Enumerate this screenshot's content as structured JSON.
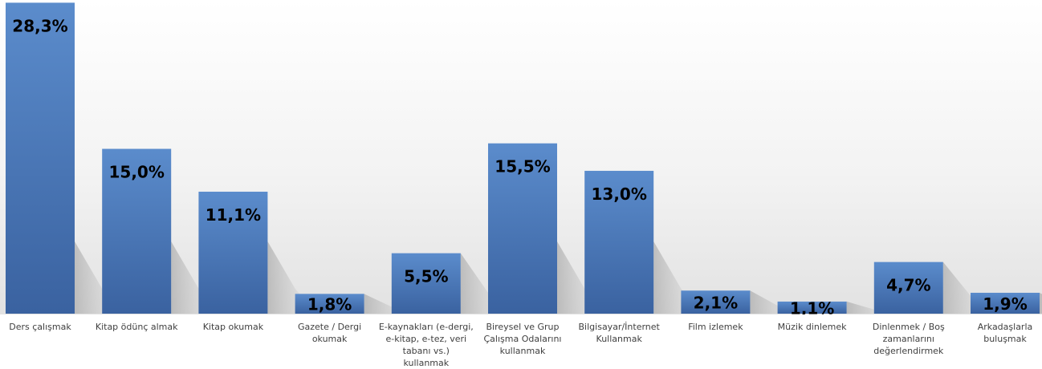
{
  "chart_data": {
    "type": "bar",
    "title": "",
    "xlabel": "",
    "ylabel": "",
    "ylim": [
      0,
      30
    ],
    "grid": false,
    "legend": "none",
    "bar_color": "#4a78b8",
    "bar_color_light": "#5b8ccc",
    "bar_color_dark": "#3a62a0",
    "label_color": "#000000",
    "categories": [
      "Ders çalışmak",
      "Kitap ödünç almak",
      "Kitap okumak",
      "Gazete / Dergi okumak",
      "E-kaynakları (e-dergi, e-kitap, e-tez, veri tabanı vs.) kullanmak",
      "Bireysel ve Grup Çalışma Odalarını kullanmak",
      "Bilgisayar/İnternet Kullanmak",
      "Film izlemek",
      "Müzik dinlemek",
      "Dinlenmek / Boş zamanlarını değerlendirmek",
      "Arkadaşlarla buluşmak"
    ],
    "category_lines": [
      [
        "Ders çalışmak"
      ],
      [
        "Kitap ödünç almak"
      ],
      [
        "Kitap okumak"
      ],
      [
        "Gazete / Dergi",
        "okumak"
      ],
      [
        "E-kaynakları (e-dergi,",
        "e-kitap, e-tez, veri",
        "tabanı vs.) kullanmak"
      ],
      [
        "Bireysel ve Grup",
        "Çalışma Odalarını",
        "kullanmak"
      ],
      [
        "Bilgisayar/İnternet",
        "Kullanmak"
      ],
      [
        "Film izlemek"
      ],
      [
        "Müzik dinlemek"
      ],
      [
        "Dinlenmek / Boş",
        "zamanlarını",
        "değerlendirmek"
      ],
      [
        "Arkadaşlarla",
        "buluşmak"
      ]
    ],
    "values": [
      28.3,
      15.0,
      11.1,
      1.8,
      5.5,
      15.5,
      13.0,
      2.1,
      1.1,
      4.7,
      1.9
    ],
    "data_labels": [
      "28,3%",
      "15,0%",
      "11,1%",
      "1,8%",
      "5,5%",
      "15,5%",
      "13,0%",
      "2,1%",
      "1,1%",
      "4,7%",
      "1,9%"
    ]
  }
}
